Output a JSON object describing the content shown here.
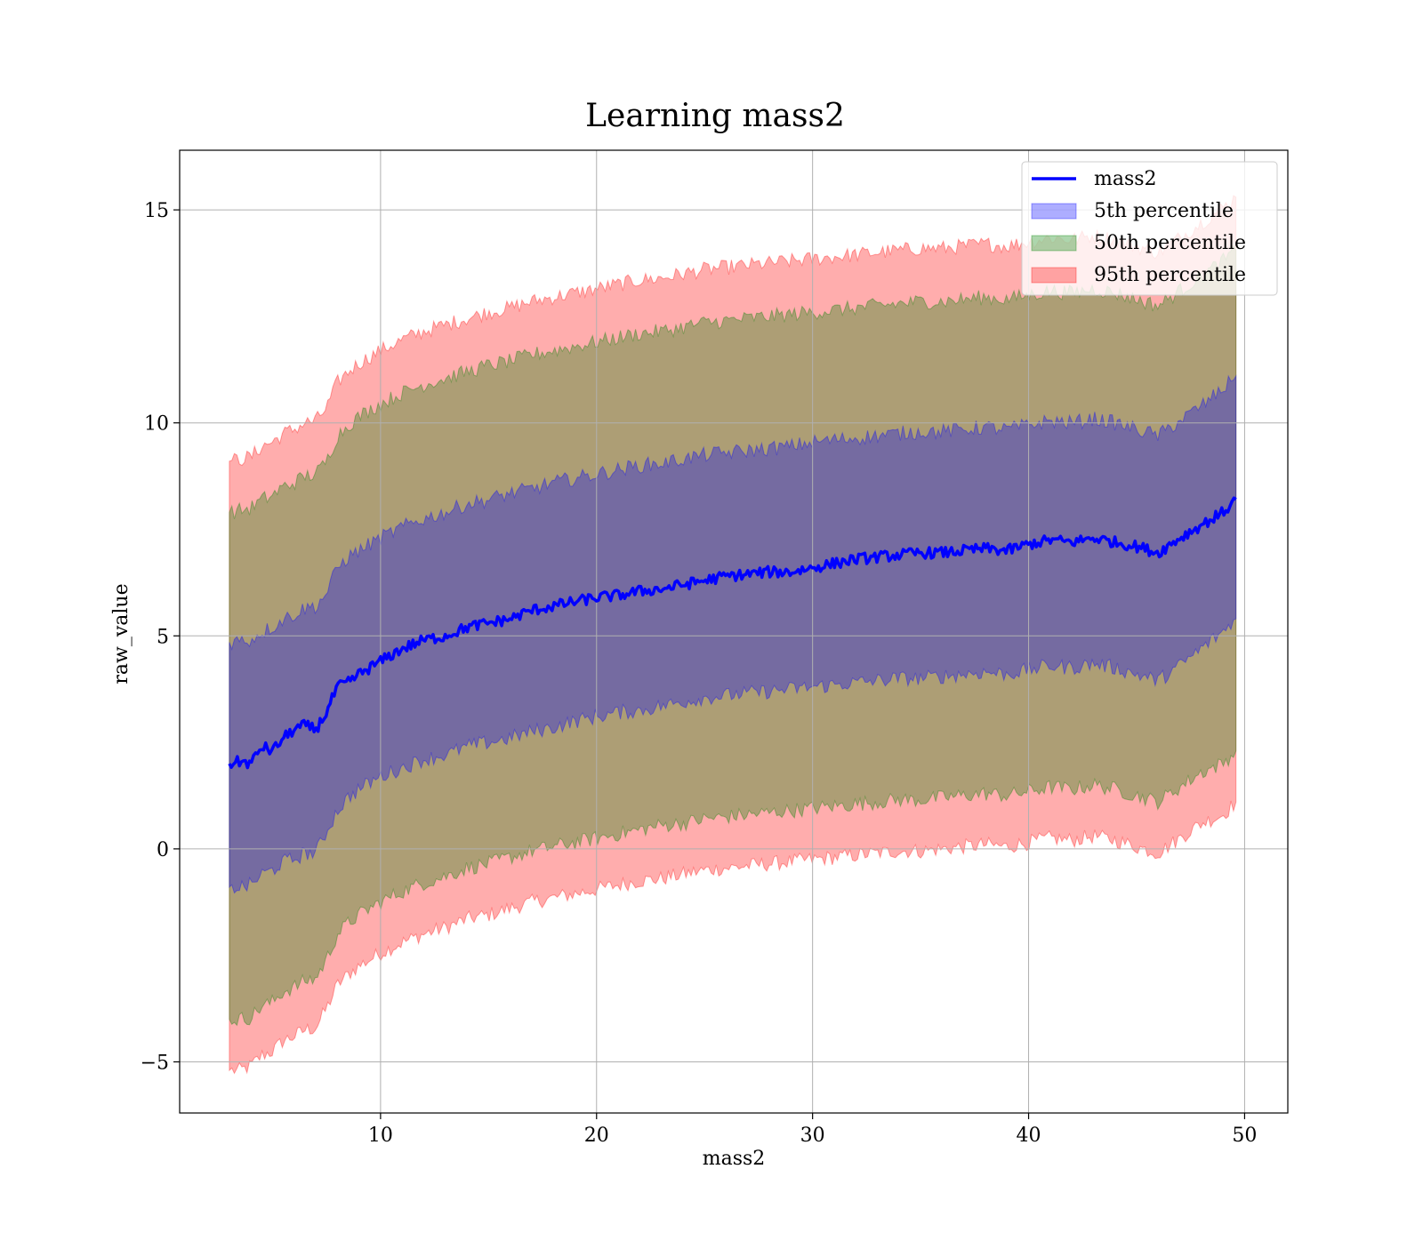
{
  "chart_data": {
    "type": "area",
    "title": "Learning mass2",
    "xlabel": "mass2",
    "ylabel": "raw_value",
    "xlim": [
      0.7,
      52.0
    ],
    "ylim": [
      -6.2,
      16.4
    ],
    "xticks": [
      10,
      20,
      30,
      40,
      50
    ],
    "xtick_labels": [
      "10",
      "20",
      "30",
      "40",
      "50"
    ],
    "yticks": [
      -5,
      0,
      5,
      10,
      15
    ],
    "ytick_labels": [
      "−5",
      "0",
      "5",
      "10",
      "15"
    ],
    "grid": true,
    "legend_position": "top-right",
    "x": [
      3.0,
      3.5,
      4.0,
      4.5,
      5.0,
      5.5,
      6.0,
      6.5,
      7.0,
      7.5,
      8.0,
      8.5,
      9.0,
      10.0,
      11.0,
      12.0,
      13.0,
      14.0,
      15.0,
      16.0,
      17.0,
      18.0,
      19.0,
      20.0,
      21.0,
      22.0,
      23.0,
      24.0,
      25.0,
      26.0,
      27.0,
      28.0,
      29.0,
      30.0,
      31.0,
      32.0,
      33.0,
      34.0,
      35.0,
      36.0,
      37.0,
      38.0,
      39.0,
      40.0,
      41.0,
      42.0,
      43.0,
      44.0,
      45.0,
      46.0,
      47.0,
      48.0,
      49.0,
      49.6
    ],
    "series": [
      {
        "name": "mass2",
        "kind": "line",
        "color": "#0000ff",
        "values": [
          2.0,
          2.05,
          2.0,
          2.4,
          2.3,
          2.6,
          2.8,
          2.9,
          2.8,
          3.2,
          3.8,
          3.9,
          4.1,
          4.4,
          4.7,
          4.9,
          5.0,
          5.2,
          5.3,
          5.4,
          5.6,
          5.7,
          5.8,
          5.9,
          5.95,
          6.05,
          6.1,
          6.2,
          6.3,
          6.4,
          6.45,
          6.5,
          6.5,
          6.6,
          6.7,
          6.8,
          6.85,
          6.9,
          6.95,
          6.95,
          7.0,
          7.05,
          7.0,
          7.15,
          7.25,
          7.2,
          7.3,
          7.2,
          7.1,
          6.95,
          7.3,
          7.6,
          7.9,
          8.2
        ]
      },
      {
        "name": "5th percentile",
        "kind": "band",
        "color": "#0000ff",
        "lower": [
          -0.9,
          -0.9,
          -0.85,
          -0.6,
          -0.5,
          -0.3,
          -0.25,
          -0.1,
          -0.1,
          0.4,
          0.9,
          1.2,
          1.4,
          1.7,
          1.9,
          2.1,
          2.2,
          2.4,
          2.5,
          2.6,
          2.75,
          2.85,
          3.0,
          3.1,
          3.2,
          3.25,
          3.35,
          3.45,
          3.55,
          3.6,
          3.65,
          3.7,
          3.75,
          3.8,
          3.85,
          3.9,
          3.95,
          4.0,
          4.0,
          4.05,
          4.1,
          4.15,
          4.1,
          4.2,
          4.3,
          4.25,
          4.35,
          4.25,
          4.1,
          3.95,
          4.3,
          4.7,
          5.1,
          5.4
        ],
        "upper": [
          4.85,
          4.9,
          4.9,
          5.1,
          5.2,
          5.4,
          5.5,
          5.65,
          5.7,
          6.0,
          6.6,
          6.85,
          7.0,
          7.3,
          7.55,
          7.75,
          7.9,
          8.1,
          8.2,
          8.35,
          8.45,
          8.6,
          8.7,
          8.8,
          8.9,
          9.0,
          9.05,
          9.15,
          9.25,
          9.3,
          9.35,
          9.4,
          9.45,
          9.55,
          9.6,
          9.65,
          9.7,
          9.75,
          9.8,
          9.8,
          9.85,
          9.9,
          9.85,
          9.95,
          10.05,
          10.0,
          10.1,
          10.0,
          9.85,
          9.7,
          10.05,
          10.4,
          10.8,
          11.1
        ]
      },
      {
        "name": "50th percentile",
        "kind": "band",
        "color": "#008000",
        "lower": [
          -4.0,
          -4.0,
          -3.95,
          -3.7,
          -3.6,
          -3.35,
          -3.25,
          -3.1,
          -3.05,
          -2.6,
          -2.0,
          -1.75,
          -1.55,
          -1.25,
          -1.0,
          -0.8,
          -0.65,
          -0.45,
          -0.35,
          -0.2,
          -0.05,
          0.05,
          0.15,
          0.25,
          0.35,
          0.45,
          0.55,
          0.6,
          0.7,
          0.75,
          0.8,
          0.85,
          0.9,
          0.95,
          1.0,
          1.05,
          1.1,
          1.15,
          1.15,
          1.2,
          1.25,
          1.3,
          1.25,
          1.35,
          1.45,
          1.4,
          1.5,
          1.4,
          1.25,
          1.1,
          1.45,
          1.8,
          2.0,
          2.3
        ],
        "upper": [
          7.9,
          7.95,
          8.0,
          8.2,
          8.3,
          8.5,
          8.6,
          8.75,
          8.8,
          9.1,
          9.7,
          9.95,
          10.15,
          10.45,
          10.7,
          10.9,
          11.05,
          11.2,
          11.35,
          11.45,
          11.6,
          11.7,
          11.8,
          11.9,
          12.0,
          12.1,
          12.15,
          12.25,
          12.35,
          12.4,
          12.45,
          12.5,
          12.55,
          12.6,
          12.65,
          12.7,
          12.75,
          12.8,
          12.85,
          12.85,
          12.9,
          12.95,
          12.9,
          13.0,
          13.1,
          13.05,
          13.15,
          13.05,
          12.9,
          12.75,
          13.1,
          13.45,
          13.8,
          14.05
        ]
      },
      {
        "name": "95th percentile",
        "kind": "band",
        "color": "#ff0000",
        "lower": [
          -5.2,
          -5.2,
          -5.1,
          -4.85,
          -4.75,
          -4.5,
          -4.4,
          -4.25,
          -4.2,
          -3.75,
          -3.2,
          -2.95,
          -2.75,
          -2.45,
          -2.2,
          -2.0,
          -1.85,
          -1.65,
          -1.55,
          -1.4,
          -1.25,
          -1.15,
          -1.05,
          -0.95,
          -0.85,
          -0.75,
          -0.7,
          -0.6,
          -0.5,
          -0.45,
          -0.4,
          -0.35,
          -0.3,
          -0.25,
          -0.2,
          -0.15,
          -0.1,
          -0.05,
          -0.05,
          0.0,
          0.05,
          0.1,
          0.05,
          0.15,
          0.25,
          0.2,
          0.3,
          0.2,
          0.05,
          -0.1,
          0.25,
          0.6,
          0.8,
          1.1
        ],
        "upper": [
          9.1,
          9.15,
          9.2,
          9.45,
          9.55,
          9.75,
          9.85,
          10.0,
          10.05,
          10.35,
          10.95,
          11.2,
          11.4,
          11.7,
          11.95,
          12.15,
          12.3,
          12.45,
          12.6,
          12.7,
          12.85,
          12.95,
          13.05,
          13.15,
          13.25,
          13.35,
          13.4,
          13.5,
          13.6,
          13.65,
          13.7,
          13.75,
          13.8,
          13.85,
          13.9,
          13.95,
          14.0,
          14.05,
          14.1,
          14.1,
          14.15,
          14.2,
          14.15,
          14.25,
          14.35,
          14.3,
          14.4,
          14.3,
          14.15,
          14.0,
          14.35,
          14.7,
          15.05,
          15.3
        ]
      }
    ],
    "colors": {
      "line": "#0000ff",
      "band_5th": "#0000ff",
      "band_50th": "#008000",
      "band_95th": "#ff0000",
      "grid": "#b0b0b0"
    }
  }
}
